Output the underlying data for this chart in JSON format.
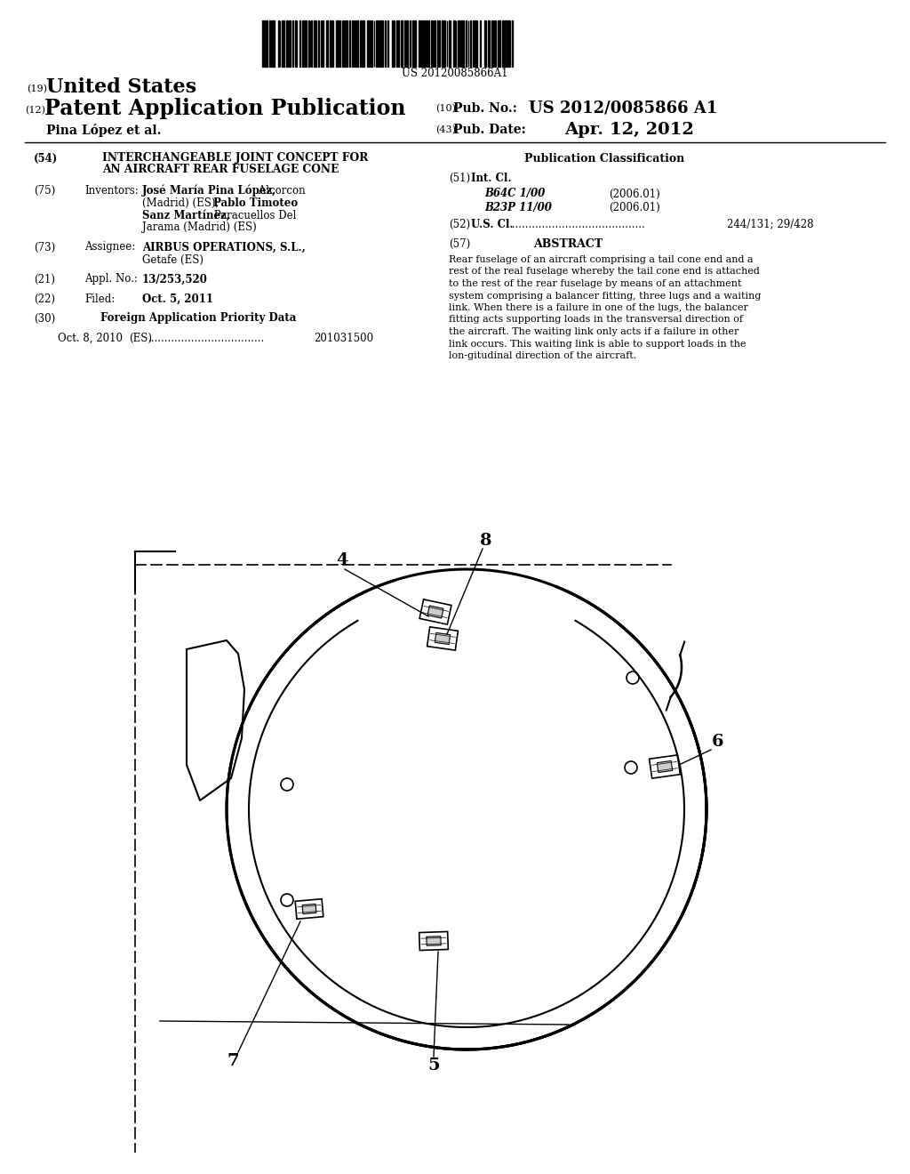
{
  "background_color": "#ffffff",
  "barcode_text": "US 20120085866A1",
  "header": {
    "num19": "(19)",
    "united_states": "United States",
    "num12": "(12)",
    "patent_app_pub": "Patent Application Publication",
    "applicant": "Pina López et al.",
    "num10": "(10)",
    "pub_no_label": "Pub. No.:",
    "pub_no": "US 2012/0085866 A1",
    "num43": "(43)",
    "pub_date_label": "Pub. Date:",
    "pub_date": "Apr. 12, 2012"
  },
  "left_column": {
    "num54": "(54)",
    "title_line1": "INTERCHANGEABLE JOINT CONCEPT FOR",
    "title_line2": "AN AIRCRAFT REAR FUSELAGE CONE",
    "num75": "(75)",
    "inventors_label": "Inventors:",
    "num73": "(73)",
    "assignee_label": "Assignee:",
    "num21": "(21)",
    "appl_no_label": "Appl. No.:",
    "appl_no": "13/253,520",
    "num22": "(22)",
    "filed_label": "Filed:",
    "filed_date": "Oct. 5, 2011",
    "num30": "(30)",
    "foreign_priority": "Foreign Application Priority Data",
    "priority_date": "Oct. 8, 2010",
    "priority_es": "(ES)",
    "priority_num": "201031500"
  },
  "right_column": {
    "pub_class_header": "Publication Classification",
    "num51": "(51)",
    "int_cl_label": "Int. Cl.",
    "class1_code": "B64C 1/00",
    "class1_year": "(2006.01)",
    "class2_code": "B23P 11/00",
    "class2_year": "(2006.01)",
    "num52": "(52)",
    "us_cl_label": "U.S. Cl.",
    "us_cl_num": "244/131; 29/428",
    "num57": "(57)",
    "abstract_header": "ABSTRACT",
    "abstract_text": "Rear fuselage of an aircraft comprising a tail cone end and a rest of the real fuselage whereby the tail cone end is attached to the rest of the rear fuselage by means of an attachment system comprising a balancer fitting, three lugs and a waiting link. When there is a failure in one of the lugs, the balancer fitting acts supporting loads in the transversal direction of the aircraft. The waiting link only acts if a failure in other link occurs. This waiting link is able to support loads in the lon-gitudinal direction of the aircraft."
  }
}
